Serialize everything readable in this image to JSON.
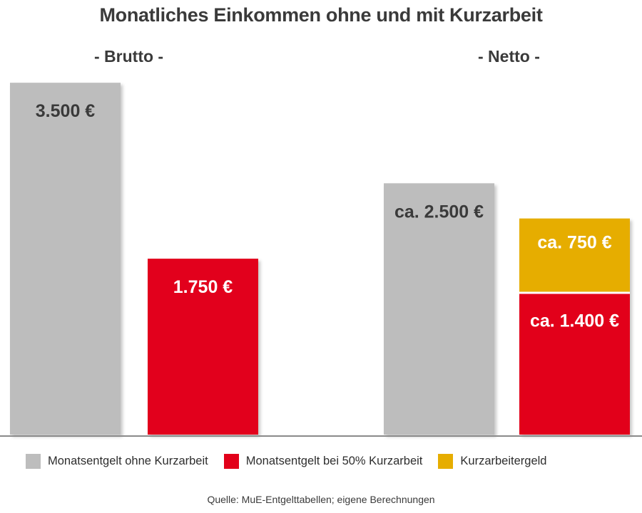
{
  "header": {
    "title": "Monatliches Einkommen ohne und mit Kurzarbeit",
    "group_brutto": "- Brutto -",
    "group_netto": "- Netto -"
  },
  "colors": {
    "grey": "#bdbdbd",
    "red": "#e2001a",
    "yellow": "#e6ad00",
    "label_dark": "#3a3a3a",
    "label_light": "#ffffff"
  },
  "chart_data": {
    "type": "bar",
    "title": "Monatliches Einkommen ohne und mit Kurzarbeit",
    "groups": [
      "- Brutto -",
      "- Netto -"
    ],
    "unit": "€",
    "grid": false,
    "legend_position": "bottom",
    "bars": [
      {
        "group": "- Brutto -",
        "series": "Monatsentgelt ohne Kurzarbeit",
        "value": 3500,
        "label": "3.500 €",
        "color": "#bdbdbd",
        "label_color": "#3a3a3a"
      },
      {
        "group": "- Brutto -",
        "series": "Monatsentgelt bei 50% Kurzarbeit",
        "value": 1750,
        "label": "1.750 €",
        "color": "#e2001a",
        "label_color": "#ffffff"
      },
      {
        "group": "- Netto -",
        "series": "Monatsentgelt ohne Kurzarbeit",
        "value": 2500,
        "label": "ca. 2.500 €",
        "color": "#bdbdbd",
        "label_color": "#3a3a3a"
      },
      {
        "group": "- Netto -",
        "stacked": true,
        "segments": [
          {
            "series": "Monatsentgelt bei 50% Kurzarbeit",
            "value": 1400,
            "label": "ca. 1.400 €",
            "color": "#e2001a",
            "label_color": "#ffffff"
          },
          {
            "series": "Kurzarbeitergeld",
            "value": 750,
            "label": "ca. 750 €",
            "color": "#e6ad00",
            "label_color": "#ffffff"
          }
        ]
      }
    ],
    "legend": [
      {
        "label": "Monatsentgelt ohne Kurzarbeit",
        "color": "#bdbdbd"
      },
      {
        "label": "Monatsentgelt bei 50% Kurzarbeit",
        "color": "#e2001a"
      },
      {
        "label": "Kurzarbeitergeld",
        "color": "#e6ad00"
      }
    ]
  },
  "footer": {
    "source": "Quelle: MuE-Entgelttabellen; eigene Berechnungen"
  }
}
